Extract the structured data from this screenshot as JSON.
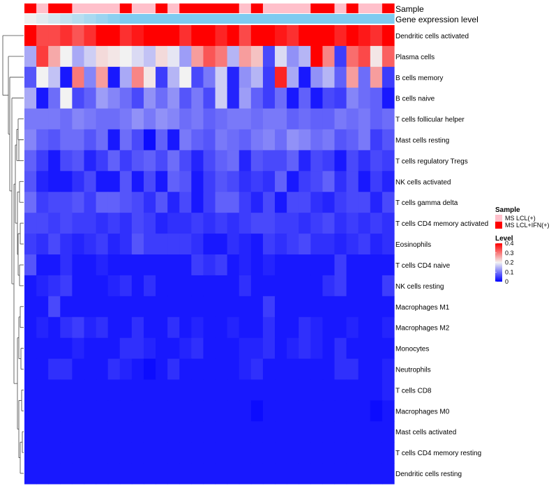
{
  "chart_data": {
    "type": "heatmap",
    "title": "",
    "annotations": {
      "sample_label": "Sample",
      "expression_label": "Gene expression level",
      "sample_groups": [
        "B",
        "A",
        "B",
        "B",
        "A",
        "A",
        "A",
        "A",
        "B",
        "A",
        "A",
        "B",
        "A",
        "B",
        "B",
        "B",
        "B",
        "B",
        "A",
        "B",
        "A",
        "A",
        "A",
        "A",
        "B",
        "B",
        "A",
        "B",
        "A",
        "A",
        "B"
      ]
    },
    "legend": {
      "sample_title": "Sample",
      "sample_entries": [
        {
          "label": "MS LCL(+)",
          "color": "#ffc0cb"
        },
        {
          "label": "MS LCL+IFN(+)",
          "color": "#ff0000"
        }
      ],
      "level_title": "Level",
      "level_ticks": [
        "0.4",
        "0.3",
        "0.2",
        "0.1",
        "0"
      ],
      "level_range": [
        0,
        0.4
      ]
    },
    "rows": [
      "Dendritic cells activated",
      "Plasma cells",
      "B cells memory",
      "B cells naive",
      "T cells follicular helper",
      "Mast cells resting",
      "T cells regulatory  Tregs",
      "NK cells activated",
      "T cells gamma delta",
      "T cells CD4 memory activated",
      "Eosinophils",
      "T cells CD4 naive",
      "NK cells resting",
      "Macrophages M1",
      "Macrophages M2",
      "Monocytes",
      "Neutrophils",
      "T cells CD8",
      "Macrophages M0",
      "Mast cells activated",
      "T cells CD4 memory resting",
      "Dendritic cells resting"
    ],
    "values": [
      [
        0.4,
        0.34,
        0.34,
        0.36,
        0.33,
        0.36,
        0.4,
        0.4,
        0.36,
        0.38,
        0.4,
        0.4,
        0.4,
        0.36,
        0.4,
        0.4,
        0.37,
        0.4,
        0.34,
        0.4,
        0.4,
        0.38,
        0.36,
        0.4,
        0.4,
        0.4,
        0.37,
        0.4,
        0.38,
        0.36,
        0.4
      ],
      [
        0.14,
        0.35,
        0.26,
        0.2,
        0.14,
        0.17,
        0.22,
        0.21,
        0.2,
        0.18,
        0.16,
        0.22,
        0.19,
        0.13,
        0.27,
        0.33,
        0.3,
        0.15,
        0.27,
        0.24,
        0.06,
        0.18,
        0.12,
        0.15,
        0.4,
        0.29,
        0.05,
        0.31,
        0.34,
        0.21,
        0.32
      ],
      [
        0.07,
        0.2,
        0.16,
        0.02,
        0.3,
        0.11,
        0.27,
        0.02,
        0.14,
        0.29,
        0.21,
        0.05,
        0.15,
        0.2,
        0.06,
        0.1,
        0.17,
        0.03,
        0.12,
        0.15,
        0.05,
        0.37,
        0.14,
        0.02,
        0.12,
        0.15,
        0.08,
        0.27,
        0.09,
        0.27,
        0.05
      ],
      [
        0.14,
        0.02,
        0.09,
        0.2,
        0.06,
        0.08,
        0.13,
        0.11,
        0.09,
        0.06,
        0.12,
        0.09,
        0.12,
        0.07,
        0.1,
        0.06,
        0.17,
        0.03,
        0.13,
        0.08,
        0.05,
        0.09,
        0.02,
        0.08,
        0.02,
        0.06,
        0.05,
        0.11,
        0.09,
        0.08,
        0.02
      ],
      [
        0.1,
        0.1,
        0.1,
        0.09,
        0.11,
        0.1,
        0.09,
        0.09,
        0.1,
        0.12,
        0.1,
        0.12,
        0.11,
        0.09,
        0.1,
        0.08,
        0.09,
        0.1,
        0.1,
        0.09,
        0.1,
        0.1,
        0.08,
        0.09,
        0.08,
        0.08,
        0.1,
        0.09,
        0.1,
        0.08,
        0.09
      ],
      [
        0.11,
        0.08,
        0.07,
        0.09,
        0.09,
        0.07,
        0.09,
        0.02,
        0.09,
        0.06,
        0.01,
        0.08,
        0.02,
        0.1,
        0.08,
        0.07,
        0.1,
        0.09,
        0.08,
        0.1,
        0.11,
        0.09,
        0.12,
        0.11,
        0.09,
        0.1,
        0.07,
        0.08,
        0.1,
        0.05,
        0.07
      ],
      [
        0.08,
        0.05,
        0.02,
        0.06,
        0.07,
        0.03,
        0.05,
        0.08,
        0.05,
        0.07,
        0.08,
        0.06,
        0.09,
        0.06,
        0.03,
        0.06,
        0.08,
        0.09,
        0.03,
        0.07,
        0.06,
        0.06,
        0.08,
        0.03,
        0.06,
        0.05,
        0.02,
        0.06,
        0.04,
        0.06,
        0.05
      ],
      [
        0.07,
        0.03,
        0.02,
        0.02,
        0.04,
        0.06,
        0.02,
        0.02,
        0.07,
        0.02,
        0.06,
        0.02,
        0.08,
        0.07,
        0.02,
        0.05,
        0.07,
        0.06,
        0.04,
        0.05,
        0.04,
        0.08,
        0.02,
        0.05,
        0.06,
        0.08,
        0.04,
        0.06,
        0.02,
        0.05,
        0.03
      ],
      [
        0.09,
        0.05,
        0.06,
        0.06,
        0.07,
        0.05,
        0.08,
        0.08,
        0.07,
        0.06,
        0.04,
        0.07,
        0.03,
        0.06,
        0.02,
        0.05,
        0.08,
        0.08,
        0.05,
        0.03,
        0.06,
        0.02,
        0.06,
        0.06,
        0.04,
        0.03,
        0.05,
        0.06,
        0.06,
        0.03,
        0.06
      ],
      [
        0.06,
        0.06,
        0.05,
        0.06,
        0.05,
        0.05,
        0.04,
        0.05,
        0.04,
        0.06,
        0.05,
        0.03,
        0.04,
        0.04,
        0.05,
        0.04,
        0.05,
        0.04,
        0.05,
        0.06,
        0.06,
        0.05,
        0.05,
        0.04,
        0.05,
        0.06,
        0.04,
        0.05,
        0.04,
        0.05,
        0.04
      ],
      [
        0.05,
        0.04,
        0.06,
        0.04,
        0.03,
        0.04,
        0.05,
        0.03,
        0.04,
        0.07,
        0.05,
        0.05,
        0.05,
        0.05,
        0.04,
        0.02,
        0.02,
        0.04,
        0.03,
        0.02,
        0.05,
        0.04,
        0.05,
        0.06,
        0.04,
        0.04,
        0.03,
        0.04,
        0.05,
        0.03,
        0.04
      ],
      [
        0.07,
        0.02,
        0.02,
        0.04,
        0.02,
        0.02,
        0.03,
        0.02,
        0.02,
        0.02,
        0.02,
        0.02,
        0.02,
        0.02,
        0.05,
        0.04,
        0.05,
        0.02,
        0.03,
        0.02,
        0.03,
        0.02,
        0.02,
        0.02,
        0.02,
        0.02,
        0.05,
        0.02,
        0.02,
        0.02,
        0.02
      ],
      [
        0.02,
        0.03,
        0.04,
        0.05,
        0.02,
        0.02,
        0.02,
        0.03,
        0.04,
        0.02,
        0.04,
        0.02,
        0.02,
        0.02,
        0.02,
        0.02,
        0.02,
        0.02,
        0.04,
        0.02,
        0.02,
        0.02,
        0.02,
        0.02,
        0.02,
        0.04,
        0.05,
        0.02,
        0.02,
        0.02,
        0.05
      ],
      [
        0.02,
        0.02,
        0.06,
        0.02,
        0.02,
        0.02,
        0.02,
        0.02,
        0.02,
        0.02,
        0.02,
        0.02,
        0.02,
        0.02,
        0.02,
        0.02,
        0.02,
        0.02,
        0.02,
        0.02,
        0.05,
        0.02,
        0.02,
        0.02,
        0.02,
        0.02,
        0.02,
        0.02,
        0.02,
        0.02,
        0.02
      ],
      [
        0.02,
        0.03,
        0.02,
        0.04,
        0.05,
        0.03,
        0.04,
        0.02,
        0.02,
        0.04,
        0.02,
        0.02,
        0.04,
        0.02,
        0.03,
        0.02,
        0.02,
        0.03,
        0.02,
        0.02,
        0.04,
        0.02,
        0.02,
        0.04,
        0.03,
        0.02,
        0.02,
        0.03,
        0.02,
        0.02,
        0.03
      ],
      [
        0.02,
        0.02,
        0.02,
        0.02,
        0.03,
        0.02,
        0.02,
        0.02,
        0.04,
        0.04,
        0.03,
        0.02,
        0.02,
        0.03,
        0.04,
        0.02,
        0.02,
        0.02,
        0.03,
        0.03,
        0.04,
        0.02,
        0.03,
        0.04,
        0.03,
        0.02,
        0.04,
        0.02,
        0.02,
        0.02,
        0.02
      ],
      [
        0.02,
        0.02,
        0.04,
        0.04,
        0.02,
        0.02,
        0.02,
        0.04,
        0.03,
        0.02,
        0.01,
        0.02,
        0.04,
        0.02,
        0.02,
        0.02,
        0.02,
        0.02,
        0.03,
        0.04,
        0.02,
        0.02,
        0.02,
        0.02,
        0.02,
        0.02,
        0.04,
        0.04,
        0.02,
        0.02,
        0.03
      ],
      [
        0.02,
        0.02,
        0.02,
        0.02,
        0.02,
        0.02,
        0.02,
        0.02,
        0.02,
        0.02,
        0.02,
        0.02,
        0.02,
        0.02,
        0.02,
        0.02,
        0.02,
        0.02,
        0.02,
        0.02,
        0.02,
        0.02,
        0.02,
        0.02,
        0.02,
        0.02,
        0.02,
        0.02,
        0.02,
        0.02,
        0.03
      ],
      [
        0.02,
        0.02,
        0.02,
        0.02,
        0.02,
        0.02,
        0.02,
        0.02,
        0.02,
        0.02,
        0.02,
        0.02,
        0.02,
        0.02,
        0.02,
        0.02,
        0.02,
        0.02,
        0.02,
        0.01,
        0.02,
        0.02,
        0.02,
        0.02,
        0.02,
        0.02,
        0.02,
        0.02,
        0.02,
        0.01,
        0.02
      ],
      [
        0.02,
        0.02,
        0.02,
        0.02,
        0.02,
        0.02,
        0.02,
        0.02,
        0.02,
        0.02,
        0.02,
        0.02,
        0.02,
        0.02,
        0.02,
        0.02,
        0.02,
        0.02,
        0.02,
        0.02,
        0.02,
        0.02,
        0.02,
        0.02,
        0.02,
        0.02,
        0.02,
        0.02,
        0.02,
        0.02,
        0.02
      ],
      [
        0.02,
        0.02,
        0.02,
        0.02,
        0.02,
        0.02,
        0.02,
        0.02,
        0.02,
        0.02,
        0.02,
        0.02,
        0.02,
        0.02,
        0.02,
        0.02,
        0.02,
        0.02,
        0.02,
        0.02,
        0.02,
        0.02,
        0.02,
        0.02,
        0.02,
        0.02,
        0.02,
        0.02,
        0.02,
        0.02,
        0.02
      ],
      [
        0.02,
        0.02,
        0.02,
        0.02,
        0.02,
        0.02,
        0.02,
        0.02,
        0.02,
        0.02,
        0.02,
        0.02,
        0.02,
        0.02,
        0.02,
        0.02,
        0.02,
        0.02,
        0.02,
        0.02,
        0.02,
        0.02,
        0.02,
        0.02,
        0.02,
        0.02,
        0.02,
        0.02,
        0.02,
        0.02,
        0.02
      ]
    ],
    "colors": {
      "low": "#0000ff",
      "mid": "#f2f2f2",
      "high": "#ff0000",
      "expression_bar": "#7ecbf0"
    }
  }
}
